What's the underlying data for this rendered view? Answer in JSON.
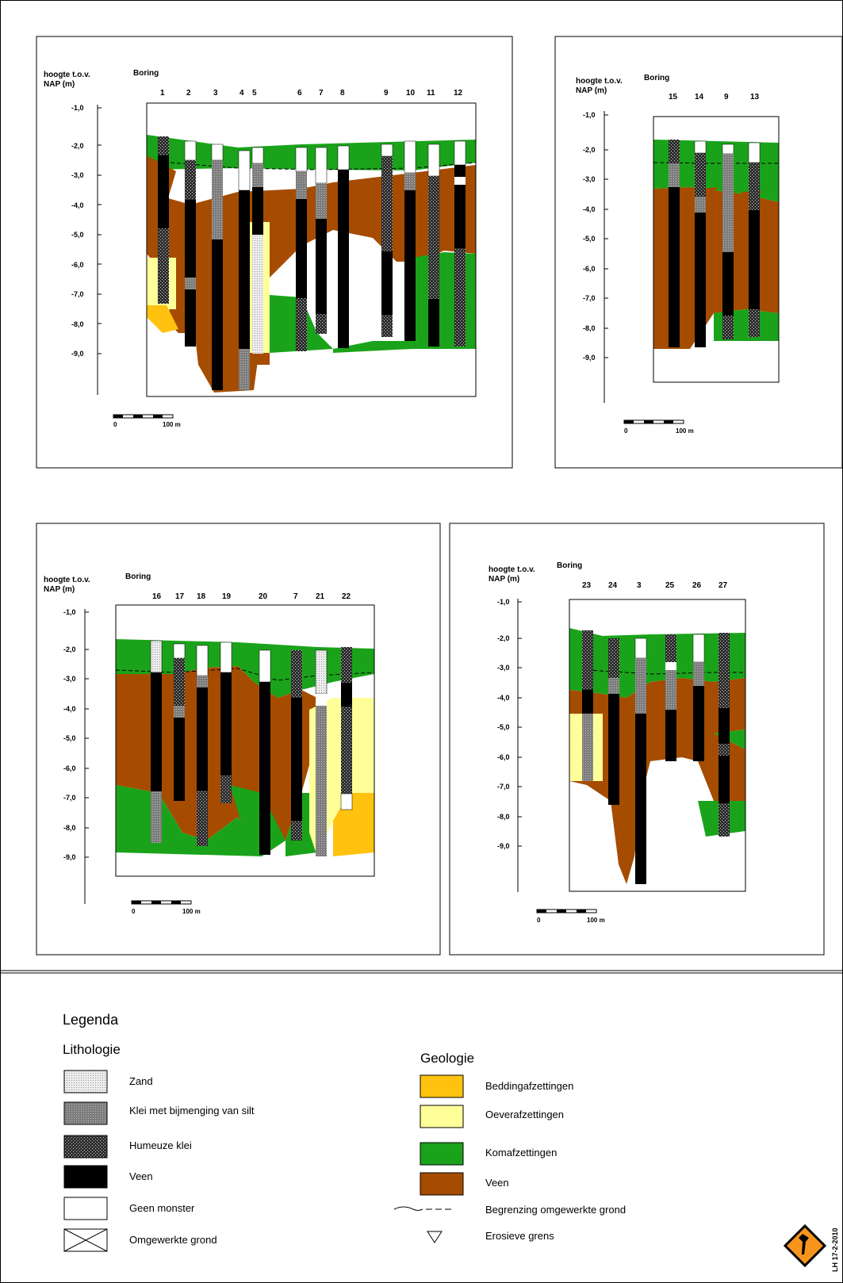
{
  "colors": {
    "zand": "#e4e4e4",
    "klei_silt": "#8a8a8a",
    "humeuze_klei": "#4a4a4a",
    "veen_litho": "#000000",
    "bedding": "#ffc20e",
    "oever": "#ffff99",
    "kom": "#1aa31a",
    "veen_geo": "#a54c00"
  },
  "panels": [
    {
      "ylabel": [
        "hoogte t.o.v.",
        "NAP (m)"
      ],
      "boring_label": "Boring",
      "ticks": [
        "-1,0",
        "-2,0",
        "-3,0",
        "-4,0",
        "-5,0",
        "-6,0",
        "-7,0",
        "-8,0",
        "-9,0"
      ],
      "borings": [
        "1",
        "2",
        "3",
        "4",
        "5",
        "6",
        "7",
        "8",
        "9",
        "10",
        "11",
        "12"
      ],
      "scale": [
        "0",
        "100 m"
      ]
    },
    {
      "ylabel": [
        "hoogte t.o.v.",
        "NAP (m)"
      ],
      "boring_label": "Boring",
      "ticks": [
        "-1,0",
        "-2,0",
        "-3,0",
        "-4,0",
        "-5,0",
        "-6,0",
        "-7,0",
        "-8,0",
        "-9,0"
      ],
      "borings": [
        "15",
        "14",
        "9",
        "13"
      ],
      "scale": [
        "0",
        "100 m"
      ]
    },
    {
      "ylabel": [
        "hoogte t.o.v.",
        "NAP (m)"
      ],
      "boring_label": "Boring",
      "ticks": [
        "-1,0",
        "-2,0",
        "-3,0",
        "-4,0",
        "-5,0",
        "-6,0",
        "-7,0",
        "-8,0",
        "-9,0"
      ],
      "borings": [
        "16",
        "17",
        "18",
        "19",
        "20",
        "7",
        "21",
        "22"
      ],
      "scale": [
        "0",
        "100 m"
      ]
    },
    {
      "ylabel": [
        "hoogte t.o.v.",
        "NAP (m)"
      ],
      "boring_label": "Boring",
      "ticks": [
        "-1,0",
        "-2,0",
        "-3,0",
        "-4,0",
        "-5,0",
        "-6,0",
        "-7,0",
        "-8,0",
        "-9,0"
      ],
      "borings": [
        "23",
        "24",
        "3",
        "25",
        "26",
        "27"
      ],
      "scale": [
        "0",
        "100 m"
      ]
    }
  ],
  "legend": {
    "title": "Legenda",
    "lithologie_title": "Lithologie",
    "lithologie": [
      "Zand",
      "Klei met bijmenging van silt",
      "Humeuze klei",
      "Veen",
      "Geen monster",
      "Omgewerkte grond"
    ],
    "geologie_title": "Geologie",
    "geologie": [
      "Beddingafzettingen",
      "Oeverafzettingen",
      "Komafzettingen",
      "Veen",
      "Begrenzing omgewerkte grond",
      "Erosieve grens"
    ]
  },
  "stamp": "LH 17-2-2010"
}
